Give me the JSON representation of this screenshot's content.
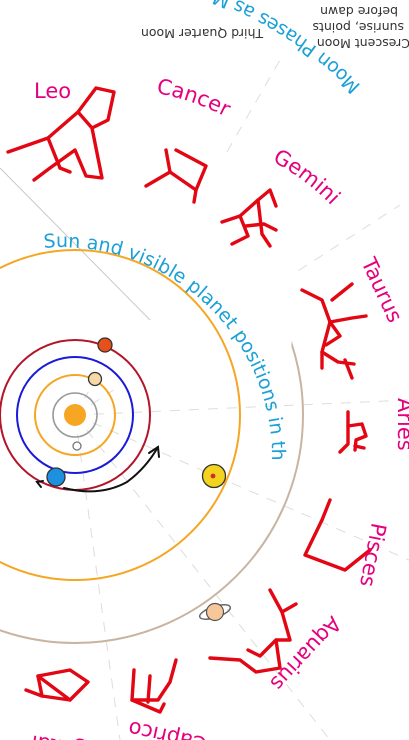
{
  "titles": {
    "moon_phases": "Moon Phases as Moon Circles Earth",
    "zodiac_positions": "Sun and visible planet positions in the Zodiac as seen from Earth's orbit"
  },
  "moon_notes": {
    "third_quarter": "Third Quarter Moon",
    "crescent_line1": "Crescent Moon",
    "crescent_line2": "sunrise, points",
    "crescent_line3": "before dawn"
  },
  "zodiac_signs": {
    "leo": "Leo",
    "cancer": "Cancer",
    "gemini": "Gemini",
    "taurus": "Taurus",
    "aries": "Aries",
    "pisces": "Pisces",
    "aquarius": "Aquarius",
    "capricorn": "Capricorn",
    "sagittarius": "Sagittarius"
  },
  "colors": {
    "zodiac_label": "#e6007e",
    "constellation": "#e30613",
    "title_blue": "#1ba0d8",
    "sun": "#f6a623",
    "orbit_mercury": "#9a9a9a",
    "orbit_venus": "#f5a623",
    "orbit_earth": "#1a1ad8",
    "orbit_mars": "#b3152a",
    "earth": "#1e90e0",
    "mars": "#e8501a",
    "jupiter": "#f2d31e",
    "saturn": "#f7c79a",
    "outer_ring": "#c8b4a0"
  }
}
